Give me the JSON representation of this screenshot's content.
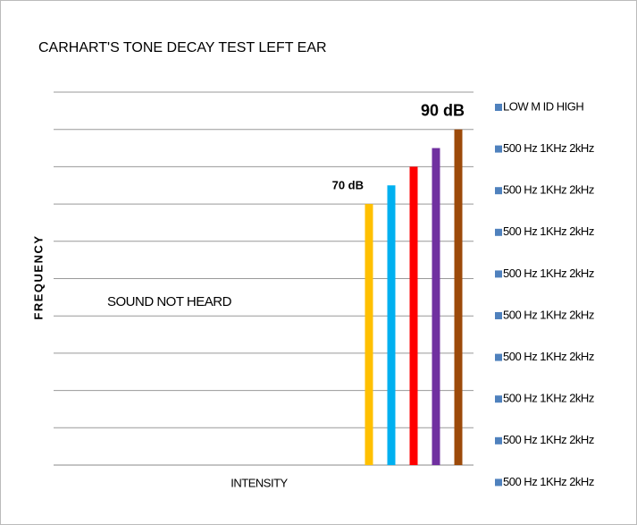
{
  "chart_data": {
    "type": "bar",
    "title": "CARHART'S  TONE  DECAY  TEST LEFT EAR",
    "y_label": "FREQUENCY",
    "x_label": "INTENSITY",
    "annotation": "SOUND NOT HEARD",
    "values": [
      70,
      75,
      80,
      85,
      90
    ],
    "value_labels": [
      "70 dB",
      null,
      null,
      null,
      "90 dB"
    ],
    "colors": [
      "#ffc000",
      "#00b0f0",
      "#ff0000",
      "#7030a0",
      "#9c4a0a"
    ],
    "ylim": [
      0,
      100
    ],
    "yticks": [
      0,
      10,
      20,
      30,
      40,
      50,
      60,
      70,
      80,
      90,
      100
    ],
    "grid": true,
    "legend_color": "#4f81bd",
    "legend": [
      "LOW M ID HIGH",
      "500 Hz 1KHz 2kHz",
      "500 Hz 1KHz 2kHz",
      "500 Hz 1KHz 2kHz",
      "500 Hz 1KHz 2kHz",
      "500 Hz 1KHz 2kHz",
      "500 Hz 1KHz 2kHz",
      "500 Hz 1KHz 2kHz",
      "500 Hz 1KHz 2kHz",
      "500 Hz 1KHz 2kHz"
    ]
  }
}
